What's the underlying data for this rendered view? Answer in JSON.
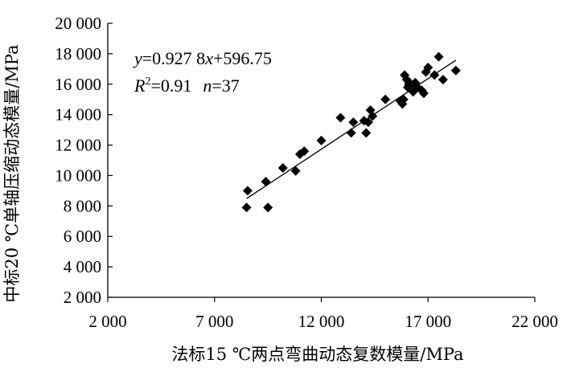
{
  "chart_data": {
    "type": "scatter",
    "title": "",
    "xlabel": "法标15 ℃两点弯曲动态复数模量/MPa",
    "ylabel": "中标20 ℃单轴压缩动态模量/MPa",
    "xlim": [
      2000,
      22000
    ],
    "ylim": [
      2000,
      20000
    ],
    "x_ticks": [
      2000,
      7000,
      12000,
      17000,
      22000
    ],
    "x_tick_labels": [
      "2 000",
      "7 000",
      "12 000",
      "17 000",
      "22 000"
    ],
    "y_ticks": [
      2000,
      4000,
      6000,
      8000,
      10000,
      12000,
      14000,
      16000,
      18000,
      20000
    ],
    "y_tick_labels": [
      "2 000",
      "4 000",
      "6 000",
      "8 000",
      "10 000",
      "12 000",
      "14 000",
      "16 000",
      "18 000",
      "20 000"
    ],
    "grid": false,
    "marker": "diamond",
    "marker_color": "#000000",
    "points": [
      {
        "x": 8500,
        "y": 7900
      },
      {
        "x": 8550,
        "y": 9000
      },
      {
        "x": 9400,
        "y": 9600
      },
      {
        "x": 9500,
        "y": 7900
      },
      {
        "x": 10200,
        "y": 10500
      },
      {
        "x": 10800,
        "y": 10300
      },
      {
        "x": 11000,
        "y": 11400
      },
      {
        "x": 11200,
        "y": 11600
      },
      {
        "x": 12000,
        "y": 12300
      },
      {
        "x": 12900,
        "y": 13800
      },
      {
        "x": 13400,
        "y": 12800
      },
      {
        "x": 13500,
        "y": 13500
      },
      {
        "x": 14000,
        "y": 13600
      },
      {
        "x": 14100,
        "y": 12800
      },
      {
        "x": 14200,
        "y": 13500
      },
      {
        "x": 14300,
        "y": 14300
      },
      {
        "x": 14400,
        "y": 13900
      },
      {
        "x": 15000,
        "y": 15000
      },
      {
        "x": 15800,
        "y": 14700
      },
      {
        "x": 15850,
        "y": 15000
      },
      {
        "x": 15900,
        "y": 16600
      },
      {
        "x": 16000,
        "y": 16300
      },
      {
        "x": 16050,
        "y": 15800
      },
      {
        "x": 16100,
        "y": 16000
      },
      {
        "x": 16200,
        "y": 16000
      },
      {
        "x": 16300,
        "y": 15500
      },
      {
        "x": 16400,
        "y": 16100
      },
      {
        "x": 16500,
        "y": 15800
      },
      {
        "x": 16700,
        "y": 15600
      },
      {
        "x": 16800,
        "y": 15400
      },
      {
        "x": 16900,
        "y": 16800
      },
      {
        "x": 17000,
        "y": 17100
      },
      {
        "x": 17300,
        "y": 16600
      },
      {
        "x": 17500,
        "y": 17800
      },
      {
        "x": 17700,
        "y": 16300
      },
      {
        "x": 18300,
        "y": 16900
      },
      {
        "x": 15700,
        "y": 14900
      }
    ],
    "fit": {
      "slope": 0.9278,
      "intercept": 596.75,
      "x_range": [
        8500,
        18300
      ]
    },
    "annotation": {
      "eq_var_y": "y",
      "eq_mid": "=0.927 8",
      "eq_var_x": "x",
      "eq_tail": "+596.75",
      "r_sym": "R",
      "r_sup": "2",
      "r_val": "=0.91",
      "n_sym": "n",
      "n_val": "=37"
    }
  }
}
